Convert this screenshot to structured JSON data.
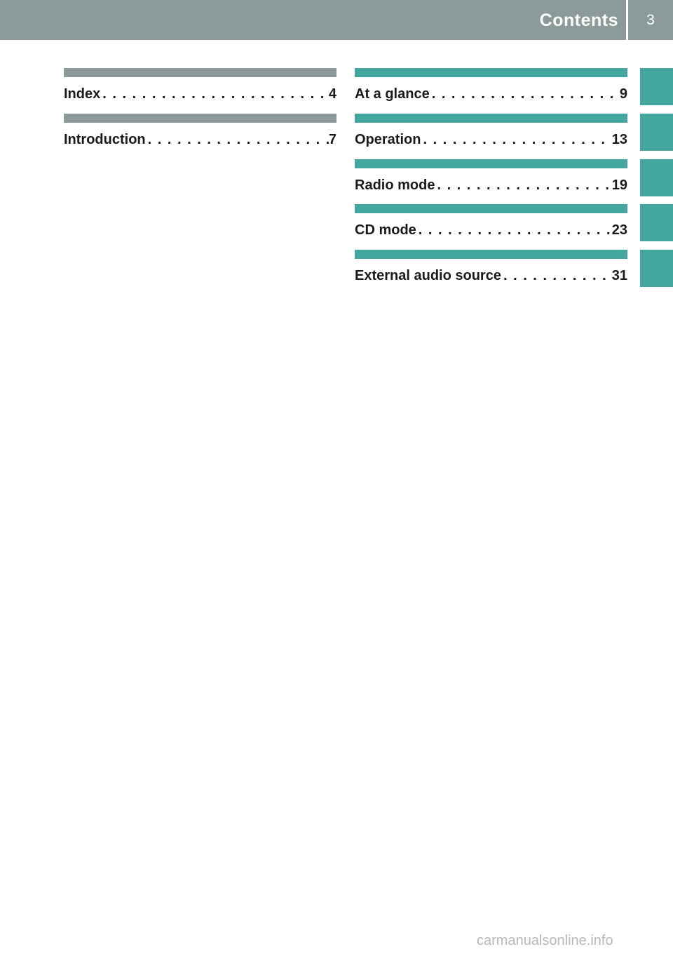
{
  "header": {
    "section_title": "Contents",
    "page_number": "3"
  },
  "left_column": [
    {
      "label": "Index",
      "page": "4"
    },
    {
      "label": "Introduction",
      "page": "7"
    }
  ],
  "right_column": [
    {
      "label": "At a glance",
      "page": "9"
    },
    {
      "label": "Operation",
      "page": "13"
    },
    {
      "label": "Radio mode",
      "page": "19"
    },
    {
      "label": "CD mode",
      "page": "23"
    },
    {
      "label": "External audio source",
      "page": "31"
    }
  ],
  "colors": {
    "grey_bar": "#8c9b99",
    "teal_bar": "#43a7a0"
  },
  "footer": {
    "watermark": "carmanualsonline.info"
  }
}
